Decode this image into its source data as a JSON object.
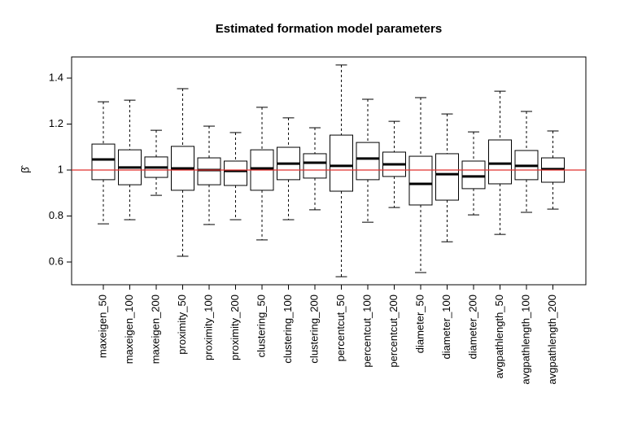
{
  "chart_data": {
    "type": "boxplot",
    "title": "Estimated formation model parameters",
    "y_label": "β̂",
    "categories": [
      "maxeigen_50",
      "maxeigen_100",
      "maxeigen_200",
      "proximity_50",
      "proximity_100",
      "proximity_200",
      "clustering_50",
      "clustering_100",
      "clustering_200",
      "percentcut_50",
      "percentcut_100",
      "percentcut_200",
      "diameter_50",
      "diameter_100",
      "diameter_200",
      "avgpathlength_50",
      "avgpathlength_100",
      "avgpathlength_200"
    ],
    "boxes": [
      {
        "min": 0.766,
        "q1": 0.958,
        "median": 1.046,
        "q3": 1.113,
        "max": 1.297
      },
      {
        "min": 0.784,
        "q1": 0.936,
        "median": 1.011,
        "q3": 1.088,
        "max": 1.304
      },
      {
        "min": 0.89,
        "q1": 0.968,
        "median": 1.011,
        "q3": 1.057,
        "max": 1.173
      },
      {
        "min": 0.625,
        "q1": 0.912,
        "median": 1.007,
        "q3": 1.103,
        "max": 1.354
      },
      {
        "min": 0.763,
        "q1": 0.936,
        "median": 1.0,
        "q3": 1.053,
        "max": 1.191
      },
      {
        "min": 0.784,
        "q1": 0.933,
        "median": 0.996,
        "q3": 1.039,
        "max": 1.163
      },
      {
        "min": 0.696,
        "q1": 0.912,
        "median": 1.007,
        "q3": 1.088,
        "max": 1.273
      },
      {
        "min": 0.784,
        "q1": 0.958,
        "median": 1.028,
        "q3": 1.099,
        "max": 1.227
      },
      {
        "min": 0.827,
        "q1": 0.965,
        "median": 1.032,
        "q3": 1.071,
        "max": 1.184
      },
      {
        "min": 0.536,
        "q1": 0.908,
        "median": 1.018,
        "q3": 1.152,
        "max": 1.457
      },
      {
        "min": 0.773,
        "q1": 0.958,
        "median": 1.05,
        "q3": 1.12,
        "max": 1.308
      },
      {
        "min": 0.837,
        "q1": 0.972,
        "median": 1.025,
        "q3": 1.078,
        "max": 1.212
      },
      {
        "min": 0.554,
        "q1": 0.848,
        "median": 0.94,
        "q3": 1.06,
        "max": 1.315
      },
      {
        "min": 0.688,
        "q1": 0.869,
        "median": 0.982,
        "q3": 1.071,
        "max": 1.244
      },
      {
        "min": 0.805,
        "q1": 0.919,
        "median": 0.972,
        "q3": 1.039,
        "max": 1.166
      },
      {
        "min": 0.72,
        "q1": 0.94,
        "median": 1.028,
        "q3": 1.131,
        "max": 1.343
      },
      {
        "min": 0.816,
        "q1": 0.958,
        "median": 1.018,
        "q3": 1.085,
        "max": 1.255
      },
      {
        "min": 0.83,
        "q1": 0.947,
        "median": 1.004,
        "q3": 1.053,
        "max": 1.17
      }
    ],
    "ylim": [
      0.501,
      1.492
    ],
    "yticks": [
      0.6,
      0.8,
      1.0,
      1.2,
      1.4
    ],
    "reference_line": {
      "value": 1.0,
      "color": "#e0302f"
    },
    "box_color": "#000000"
  }
}
